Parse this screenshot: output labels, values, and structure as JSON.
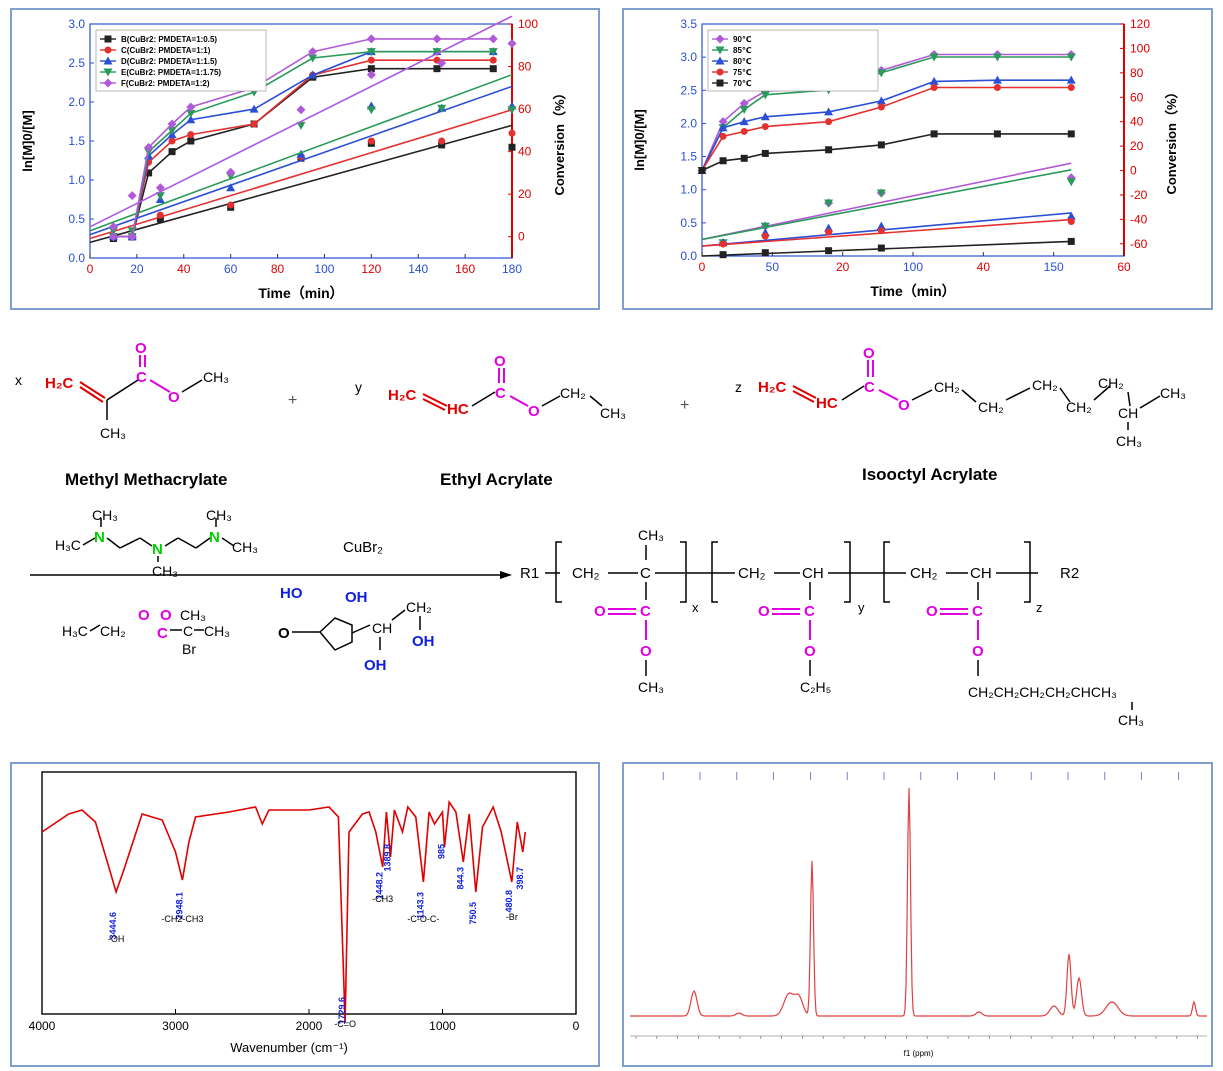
{
  "chart_data": [
    {
      "type": "line",
      "xlabel": "Time（min）",
      "ylabel": "ln[M]0/[M]",
      "y2label": "Conversion（%）",
      "xlim": [
        0,
        180
      ],
      "ylim": [
        0,
        3.0
      ],
      "y2lim": [
        -10,
        100
      ],
      "xticks": [
        "0",
        "20",
        "40",
        "60",
        "80",
        "100",
        "120",
        "140",
        "160",
        "180"
      ],
      "yticks": [
        "0.0",
        "0.5",
        "1.0",
        "1.5",
        "2.0",
        "2.5",
        "3.0"
      ],
      "y2ticks": [
        "0",
        "20",
        "40",
        "60",
        "80",
        "100"
      ],
      "legend_position": "top-left",
      "series": [
        {
          "name": "B(CuBr2: PMDETA=1:0.5)",
          "color": "#222222",
          "marker": "square",
          "conv_x": [
            10,
            18,
            25,
            35,
            43,
            70,
            95,
            120,
            148,
            172
          ],
          "conv_y": [
            0,
            0,
            30,
            40,
            45,
            53,
            75,
            79,
            79,
            79
          ],
          "ln_x": [
            10,
            18,
            30,
            60,
            90,
            120,
            150,
            180
          ],
          "ln_y": [
            0.25,
            0.27,
            0.5,
            0.65,
            1.28,
            1.47,
            1.45,
            1.42
          ],
          "fit": [
            [
              0,
              0.2
            ],
            [
              180,
              1.7
            ]
          ]
        },
        {
          "name": "C(CuBr2: PMDETA=1:1)",
          "color": "#e53030",
          "marker": "circle",
          "conv_x": [
            10,
            18,
            25,
            35,
            43,
            70,
            95,
            120,
            148,
            172
          ],
          "conv_y": [
            0,
            0,
            35,
            45,
            48,
            53,
            76,
            83,
            83,
            83
          ],
          "ln_x": [
            10,
            18,
            30,
            60,
            90,
            120,
            150,
            180
          ],
          "ln_y": [
            0.27,
            0.27,
            0.55,
            0.68,
            1.3,
            1.5,
            1.5,
            1.6
          ],
          "fit": [
            [
              0,
              0.25
            ],
            [
              180,
              1.9
            ]
          ]
        },
        {
          "name": "D(CuBr2: PMDETA=1:1.5)",
          "color": "#2a4fd6",
          "marker": "triangle",
          "conv_x": [
            10,
            18,
            25,
            35,
            43,
            70,
            95,
            120,
            148,
            172
          ],
          "conv_y": [
            0,
            0,
            38,
            48,
            55,
            60,
            76,
            87,
            87,
            87
          ],
          "ln_x": [
            10,
            18,
            30,
            60,
            90,
            120,
            150,
            180
          ],
          "ln_y": [
            0.3,
            0.3,
            0.75,
            0.9,
            1.33,
            1.95,
            1.92,
            1.95
          ],
          "fit": [
            [
              0,
              0.3
            ],
            [
              180,
              2.2
            ]
          ]
        },
        {
          "name": "E(CuBr2: PMDETA=1:1.75)",
          "color": "#2a9a5a",
          "marker": "triangle-down",
          "conv_x": [
            10,
            18,
            25,
            35,
            43,
            70,
            95,
            120,
            148,
            172
          ],
          "conv_y": [
            0,
            0,
            40,
            50,
            58,
            68,
            84,
            87,
            87,
            87
          ],
          "ln_x": [
            10,
            18,
            30,
            60,
            90,
            120,
            150,
            180
          ],
          "ln_y": [
            0.35,
            0.35,
            0.8,
            1.05,
            1.7,
            1.9,
            1.92,
            1.9
          ],
          "fit": [
            [
              0,
              0.35
            ],
            [
              180,
              2.35
            ]
          ]
        },
        {
          "name": "F(CuBr2: PMDETA=1:2)",
          "color": "#b05ad8",
          "marker": "diamond",
          "conv_x": [
            10,
            18,
            25,
            35,
            43,
            70,
            95,
            120,
            148,
            172
          ],
          "conv_y": [
            0,
            0,
            42,
            53,
            61,
            70,
            87,
            93,
            93,
            93
          ],
          "ln_x": [
            10,
            18,
            30,
            60,
            90,
            120,
            150,
            180
          ],
          "ln_y": [
            0.4,
            0.8,
            0.9,
            1.1,
            1.9,
            2.35,
            2.5,
            2.75
          ],
          "fit": [
            [
              0,
              0.4
            ],
            [
              180,
              3.1
            ]
          ]
        }
      ]
    },
    {
      "type": "line",
      "xlabel": "Time（min）",
      "ylabel": "ln[M]0/[M]",
      "y2label": "Conversion（%）",
      "xticks": [
        "0",
        "50",
        "20",
        "100",
        "40",
        "150",
        "60"
      ],
      "yticks": [
        "0.0",
        "0.5",
        "1.0",
        "1.5",
        "2.0",
        "2.5",
        "3.0",
        "3.5"
      ],
      "y2ticks": [
        "-60",
        "-40",
        "-20",
        "0",
        "20",
        "40",
        "60",
        "80",
        "100",
        "120"
      ],
      "xlim": [
        0,
        200
      ],
      "ylim": [
        0,
        3.5
      ],
      "y2lim": [
        -70,
        120
      ],
      "legend_position": "top-left",
      "series": [
        {
          "name": "90℃",
          "color": "#b05ad8",
          "marker": "diamond",
          "conv_x": [
            0,
            10,
            20,
            30,
            60,
            85,
            110,
            140,
            175
          ],
          "conv_y": [
            0,
            40,
            55,
            65,
            68,
            82,
            95,
            95,
            95
          ],
          "ln_x": [
            10,
            30,
            60,
            85,
            175
          ],
          "ln_y": [
            0.2,
            0.45,
            0.8,
            0.95,
            1.18
          ],
          "fit": [
            [
              0,
              0.25
            ],
            [
              175,
              1.4
            ]
          ]
        },
        {
          "name": "85℃",
          "color": "#2a9a5a",
          "marker": "triangle-down",
          "conv_x": [
            0,
            10,
            20,
            30,
            60,
            85,
            110,
            140,
            175
          ],
          "conv_y": [
            0,
            35,
            50,
            62,
            66,
            80,
            93,
            93,
            93
          ],
          "ln_x": [
            10,
            30,
            60,
            85,
            175
          ],
          "ln_y": [
            0.2,
            0.45,
            0.8,
            0.95,
            1.12
          ],
          "fit": [
            [
              0,
              0.25
            ],
            [
              175,
              1.3
            ]
          ]
        },
        {
          "name": "80℃",
          "color": "#2a4fd6",
          "marker": "triangle",
          "conv_x": [
            0,
            10,
            20,
            30,
            60,
            85,
            110,
            140,
            175
          ],
          "conv_y": [
            0,
            35,
            40,
            44,
            48,
            57,
            73,
            74,
            74
          ],
          "ln_x": [
            10,
            30,
            60,
            85,
            175
          ],
          "ln_y": [
            0.2,
            0.35,
            0.42,
            0.45,
            0.6
          ],
          "fit": [
            [
              0,
              0.15
            ],
            [
              175,
              0.65
            ]
          ]
        },
        {
          "name": "75℃",
          "color": "#e53030",
          "marker": "circle",
          "conv_x": [
            0,
            10,
            20,
            30,
            60,
            85,
            110,
            140,
            175
          ],
          "conv_y": [
            0,
            28,
            32,
            36,
            40,
            52,
            68,
            68,
            68
          ],
          "ln_x": [
            10,
            30,
            60,
            85,
            175
          ],
          "ln_y": [
            0.18,
            0.3,
            0.36,
            0.38,
            0.52
          ],
          "fit": [
            [
              0,
              0.15
            ],
            [
              175,
              0.55
            ]
          ]
        },
        {
          "name": "70℃",
          "color": "#222222",
          "marker": "square",
          "conv_x": [
            0,
            10,
            20,
            30,
            60,
            85,
            110,
            140,
            175
          ],
          "conv_y": [
            0,
            8,
            10,
            14,
            17,
            21,
            30,
            30,
            30
          ],
          "ln_x": [
            10,
            30,
            60,
            85,
            175
          ],
          "ln_y": [
            0.02,
            0.05,
            0.08,
            0.12,
            0.22
          ],
          "fit": [
            [
              0,
              0.0
            ],
            [
              175,
              0.22
            ]
          ]
        }
      ]
    },
    {
      "type": "line",
      "xlabel": "Wavenumber (cm⁻¹)",
      "xlim": [
        4000,
        0
      ],
      "xticks": [
        "4000",
        "3000",
        "2000",
        "1000",
        "0"
      ],
      "peaks": [
        {
          "wn": "3444.6",
          "group": "-OH"
        },
        {
          "wn": "2948.1",
          "group": "-CH2-CH3"
        },
        {
          "wn": "1729.6",
          "group": "-C=O"
        },
        {
          "wn": "1448.2",
          "group": "-CH3"
        },
        {
          "wn": "1389.8",
          "group": ""
        },
        {
          "wn": "1143.3",
          "group": "-C-O-C-"
        },
        {
          "wn": "985",
          "group": ""
        },
        {
          "wn": "844.3",
          "group": ""
        },
        {
          "wn": "750.5",
          "group": ""
        },
        {
          "wn": "480.8",
          "group": "-Br"
        },
        {
          "wn": "398.7",
          "group": ""
        }
      ]
    },
    {
      "type": "line",
      "xlabel": "f1 (ppm)"
    }
  ],
  "scheme": {
    "monomers": [
      "Methyl Methacrylate",
      "Ethyl Acrylate",
      "Isooctyl Acrylate"
    ],
    "coeffs": [
      "x",
      "y",
      "z"
    ],
    "plus": "+",
    "catalyst": "CuBr₂",
    "end_groups": [
      "R1",
      "R2"
    ],
    "subscripts": [
      "x",
      "y",
      "z"
    ]
  }
}
